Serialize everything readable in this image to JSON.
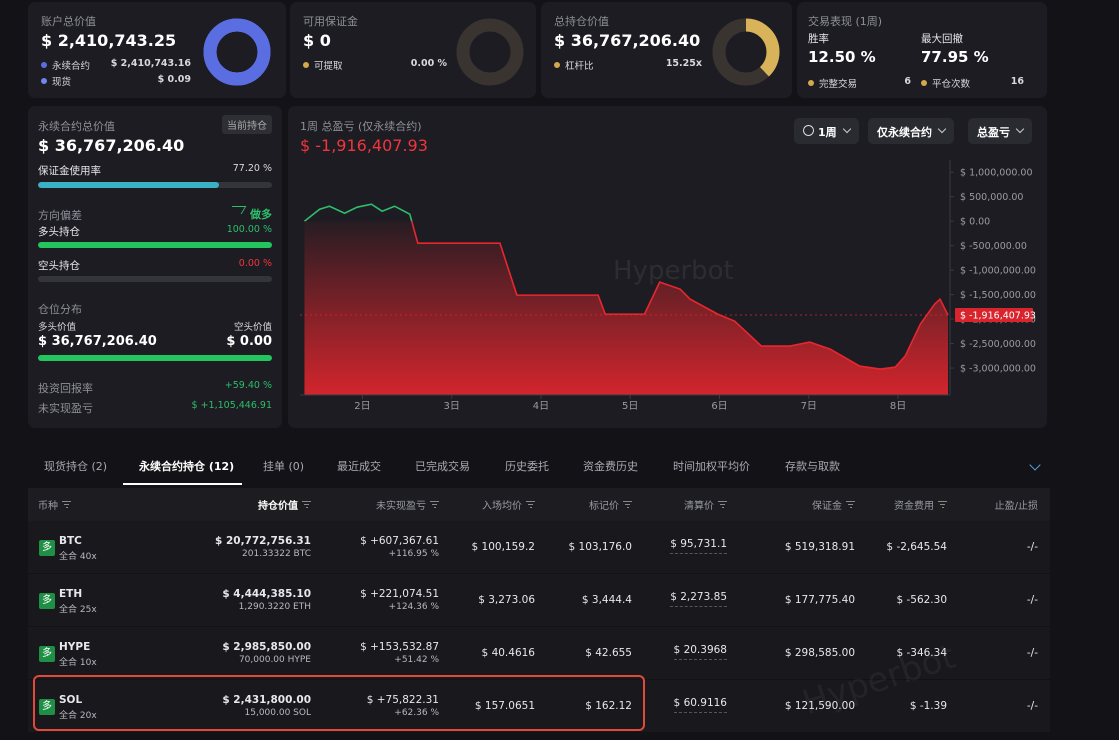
{
  "watermark": "Hyperbot",
  "cards": [
    {
      "title": "账户总价值",
      "value": "$ 2,410,743.25",
      "items": [
        {
          "label": "永续合约",
          "value": "$ 2,410,743.16",
          "color": "#5b6ee1"
        },
        {
          "label": "现货",
          "value": "$ 0.09",
          "color": "#6f86f0"
        }
      ]
    },
    {
      "title": "可用保证金",
      "value": "$ 0",
      "items": [
        {
          "label": "可提取",
          "value": "0.00 %",
          "color": "#d4a94a"
        }
      ]
    },
    {
      "title": "总持仓价值",
      "value": "$ 36,767,206.40",
      "items": [
        {
          "label": "杠杆比",
          "value": "15.25x",
          "color": "#d4a94a"
        }
      ]
    }
  ],
  "performance": {
    "title": "交易表现 (1周)",
    "metrics": [
      {
        "label": "胜率",
        "value": "12.50 %"
      },
      {
        "label": "最大回撤",
        "value": "77.95 %"
      }
    ],
    "items": [
      {
        "label": "完整交易",
        "value": "6",
        "color": "#d4a94a"
      },
      {
        "label": "平仓次数",
        "value": "16",
        "color": "#d4a94a"
      }
    ]
  },
  "perp_panel": {
    "title": "永续合约总价值",
    "tag": "当前持仓",
    "value": "$ 36,767,206.40",
    "margin_usage": {
      "label": "保证金使用率",
      "value": "77.20 %"
    },
    "bias": {
      "label": "方向偏差",
      "value": "做多"
    },
    "long": {
      "label": "多头持仓",
      "value": "100.00 %"
    },
    "short": {
      "label": "空头持仓",
      "value": "0.00 %"
    },
    "distribution": {
      "title": "仓位分布",
      "long_label": "多头价值",
      "short_label": "空头价值",
      "long_value": "$ 36,767,206.40",
      "short_value": "$ 0.00"
    },
    "roi": {
      "label": "投资回报率",
      "value": "+59.40 %"
    },
    "upnl": {
      "label": "未实现盈亏",
      "value": "$ +1,105,446.91"
    }
  },
  "pnl_chart": {
    "type": "line",
    "title": "1周 总盈亏 (仅永续合约)",
    "value": "$ -1,916,407.93",
    "controls": [
      "1周",
      "仅永续合约",
      "总盈亏"
    ],
    "up_color": "#2ebd6b",
    "down_color": "#e8262e",
    "x": [
      1.35,
      1.52,
      1.63,
      1.8,
      1.94,
      2.1,
      2.22,
      2.36,
      2.53,
      2.62,
      3.54,
      3.73,
      4.64,
      4.72,
      5.16,
      5.33,
      5.56,
      5.67,
      5.98,
      6.17,
      6.47,
      6.79,
      7.01,
      7.24,
      7.57,
      7.8,
      7.97,
      8.08,
      8.25,
      8.41,
      8.47,
      8.56
    ],
    "values": [
      0,
      245000,
      306000,
      163000,
      286000,
      347000,
      204000,
      306000,
      143000,
      -449000,
      -449000,
      -1510000,
      -1510000,
      -1898000,
      -1898000,
      -1245000,
      -1388000,
      -1592000,
      -1898000,
      -2041000,
      -2551000,
      -2551000,
      -2469000,
      -2612000,
      -2959000,
      -3020000,
      -2980000,
      -2755000,
      -2102000,
      -1694000,
      -1592000,
      -1916407.93
    ],
    "current_label": "$ -1,916,407.93",
    "xlim": [
      1.3,
      8.56
    ],
    "ylim": [
      -3550000,
      1250000
    ],
    "xticks": [
      {
        "value": 2,
        "label": "2日"
      },
      {
        "value": 3,
        "label": "3日"
      },
      {
        "value": 4,
        "label": "4日"
      },
      {
        "value": 5,
        "label": "5日"
      },
      {
        "value": 6,
        "label": "6日"
      },
      {
        "value": 7,
        "label": "7日"
      },
      {
        "value": 8,
        "label": "8日"
      }
    ],
    "yticks": [
      {
        "value": 1000000,
        "label": "$ 1,000,000.00"
      },
      {
        "value": 500000,
        "label": "$ 500,000.00"
      },
      {
        "value": 0,
        "label": "$ 0.00"
      },
      {
        "value": -500000,
        "label": "$ -500,000.00"
      },
      {
        "value": -1000000,
        "label": "$ -1,000,000.00"
      },
      {
        "value": -1500000,
        "label": "$ -1,500,000.00"
      },
      {
        "value": -2000000,
        "label": "$ -2,000,000.00"
      },
      {
        "value": -2500000,
        "label": "$ -2,500,000.00"
      },
      {
        "value": -3000000,
        "label": "$ -3,000,000.00"
      }
    ]
  },
  "tabs": {
    "items": [
      "现货持仓 (2)",
      "永续合约持仓 (12)",
      "挂单 (0)",
      "最近成交",
      "已完成交易",
      "历史委托",
      "资金费历史",
      "时间加权平均价",
      "存款与取款"
    ],
    "active": 1
  },
  "table": {
    "headers": [
      "币种",
      "持仓价值",
      "未实现盈亏",
      "入场均价",
      "标记价",
      "清算价",
      "保证金",
      "资金费用",
      "止盈/止损"
    ],
    "sorted_column": 1,
    "rows": [
      {
        "badge": "多",
        "symbol": "BTC",
        "mode": "全合 40x",
        "value": "$ 20,772,756.31",
        "size": "201.33322 BTC",
        "upnl": "$ +607,367.61",
        "roe": "+116.95 %",
        "entry": "$ 100,159.2",
        "mark": "$ 103,176.0",
        "liq": "$ 95,731.1",
        "margin": "$ 519,318.91",
        "funding": "$ -2,645.54",
        "tpsl": "-/-"
      },
      {
        "badge": "多",
        "symbol": "ETH",
        "mode": "全合 25x",
        "value": "$ 4,444,385.10",
        "size": "1,290.3220 ETH",
        "upnl": "$ +221,074.51",
        "roe": "+124.36 %",
        "entry": "$ 3,273.06",
        "mark": "$ 3,444.4",
        "liq": "$ 2,273.85",
        "margin": "$ 177,775.40",
        "funding": "$ -562.30",
        "tpsl": "-/-"
      },
      {
        "badge": "多",
        "symbol": "HYPE",
        "mode": "全合 10x",
        "value": "$ 2,985,850.00",
        "size": "70,000.00 HYPE",
        "upnl": "$ +153,532.87",
        "roe": "+51.42 %",
        "entry": "$ 40.4616",
        "mark": "$ 42.655",
        "liq": "$ 20.3968",
        "margin": "$ 298,585.00",
        "funding": "$ -346.34",
        "tpsl": "-/-"
      },
      {
        "badge": "多",
        "symbol": "SOL",
        "mode": "全合 20x",
        "value": "$ 2,431,800.00",
        "size": "15,000.00 SOL",
        "upnl": "$ +75,822.31",
        "roe": "+62.36 %",
        "entry": "$ 157.0651",
        "mark": "$ 162.12",
        "liq": "$ 60.9116",
        "margin": "$ 121,590.00",
        "funding": "$ -1.39",
        "tpsl": "-/-"
      }
    ]
  }
}
